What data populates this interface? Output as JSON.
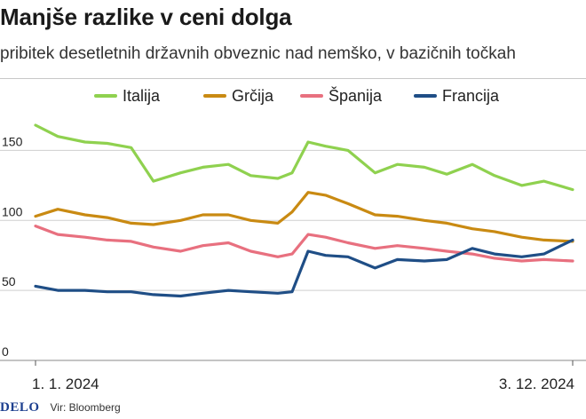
{
  "header": {
    "title": "Manjše razlike v ceni dolga",
    "subtitle": "pribitek desetletnih državnih obveznic nad nemško, v bazičnih točkah"
  },
  "footer": {
    "logo": "DELO",
    "source": "Vir: Bloomberg"
  },
  "chart_data": {
    "type": "line",
    "title": "Manjše razlike v ceni dolga",
    "subtitle": "pribitek desetletnih državnih obveznic nad nemško, v bazičnih točkah",
    "xlabel": "",
    "ylabel": "",
    "ylim": [
      0,
      175
    ],
    "yticks": [
      0,
      50,
      100,
      150
    ],
    "x_tick_labels": [
      "1. 1. 2024",
      "3. 12. 2024"
    ],
    "xlim": [
      "2024-01-01",
      "2024-12-03"
    ],
    "grid": true,
    "legend": "top",
    "x": [
      "2024-01-01",
      "2024-01-15",
      "2024-02-01",
      "2024-02-15",
      "2024-03-01",
      "2024-03-15",
      "2024-04-01",
      "2024-04-15",
      "2024-05-01",
      "2024-05-15",
      "2024-06-01",
      "2024-06-10",
      "2024-06-20",
      "2024-07-01",
      "2024-07-15",
      "2024-08-01",
      "2024-08-15",
      "2024-09-01",
      "2024-09-15",
      "2024-10-01",
      "2024-10-15",
      "2024-11-01",
      "2024-11-15",
      "2024-12-03"
    ],
    "series": [
      {
        "name": "Italija",
        "color": "#8fd14f",
        "values": [
          168,
          160,
          156,
          155,
          152,
          128,
          134,
          138,
          140,
          132,
          130,
          134,
          156,
          153,
          150,
          134,
          140,
          138,
          133,
          140,
          132,
          125,
          128,
          122
        ]
      },
      {
        "name": "Grčija",
        "color": "#c98a12",
        "values": [
          103,
          108,
          104,
          102,
          98,
          97,
          100,
          104,
          104,
          100,
          98,
          106,
          120,
          118,
          112,
          104,
          103,
          100,
          98,
          94,
          92,
          88,
          86,
          85
        ]
      },
      {
        "name": "Španija",
        "color": "#e8707f",
        "values": [
          96,
          90,
          88,
          86,
          85,
          81,
          78,
          82,
          84,
          78,
          74,
          76,
          90,
          88,
          84,
          80,
          82,
          80,
          78,
          76,
          73,
          71,
          72,
          71
        ]
      },
      {
        "name": "Francija",
        "color": "#1f4e86",
        "values": [
          53,
          50,
          50,
          49,
          49,
          47,
          46,
          48,
          50,
          49,
          48,
          49,
          78,
          75,
          74,
          66,
          72,
          71,
          72,
          80,
          76,
          74,
          76,
          86
        ]
      }
    ]
  }
}
